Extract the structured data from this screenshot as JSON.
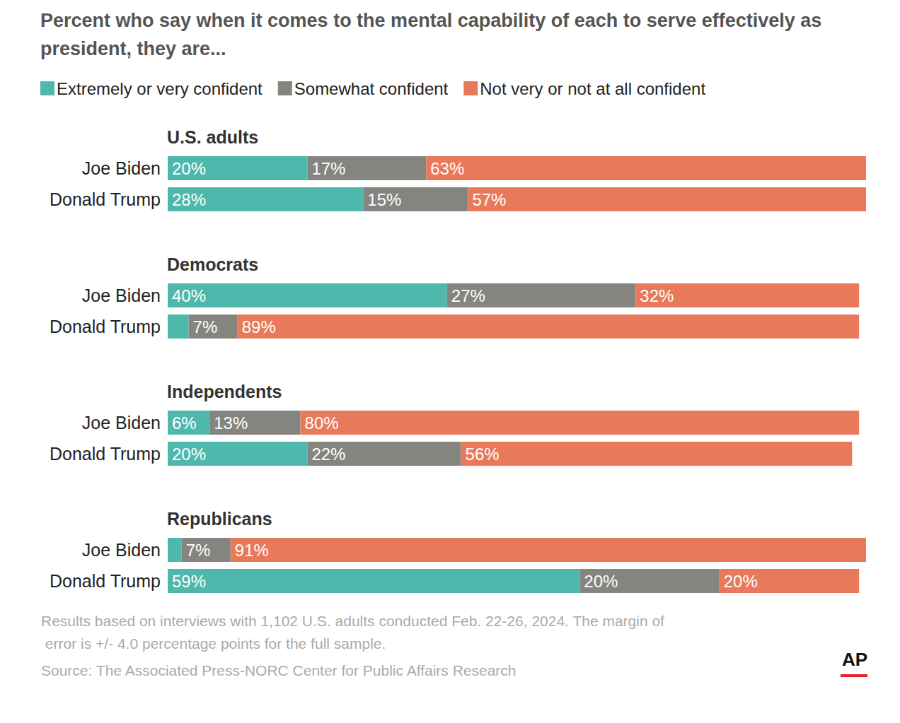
{
  "title": "Percent who say when it comes to the mental capability of each to serve effectively as president, they are...",
  "note": "Results based on interviews with 1,102 U.S. adults conducted Feb. 22-26, 2024. The margin of error is +/- 4.0 percentage points for the full sample.",
  "source": "Source: The Associated Press-NORC Center for Public Affairs Research",
  "logo": "AP",
  "chart_data": [
    {
      "type": "bar",
      "title": "U.S. adults",
      "orientation": "horizontal",
      "stacked": true,
      "data_labels": true,
      "tick_labels": "y",
      "grid": false,
      "legend": "top-left",
      "xlim": [
        0,
        100
      ],
      "categories": [
        "Joe Biden",
        "Donald Trump"
      ],
      "series": [
        {
          "name": "Extremely or very confident",
          "color": "#4fb8ad",
          "values": [
            20,
            28
          ],
          "value_labels": [
            "20%",
            "28%"
          ]
        },
        {
          "name": "Somewhat confident",
          "color": "#85857f",
          "values": [
            17,
            15
          ],
          "value_labels": [
            "17%",
            "15%"
          ]
        },
        {
          "name": "Not very or not at all confident",
          "color": "#e8795a",
          "values": [
            63,
            57
          ],
          "value_labels": [
            "63%",
            "57%"
          ]
        }
      ]
    },
    {
      "type": "bar",
      "title": "Democrats",
      "orientation": "horizontal",
      "stacked": true,
      "data_labels": true,
      "tick_labels": "y",
      "grid": false,
      "legend": "top-left",
      "xlim": [
        0,
        100
      ],
      "categories": [
        "Joe Biden",
        "Donald Trump"
      ],
      "series": [
        {
          "name": "Extremely or very confident",
          "color": "#4fb8ad",
          "values": [
            40,
            3
          ],
          "value_labels": [
            "40%",
            null
          ]
        },
        {
          "name": "Somewhat confident",
          "color": "#85857f",
          "values": [
            27,
            7
          ],
          "value_labels": [
            "27%",
            "7%"
          ]
        },
        {
          "name": "Not very or not at all confident",
          "color": "#e8795a",
          "values": [
            32,
            89
          ],
          "value_labels": [
            "32%",
            "89%"
          ]
        }
      ]
    },
    {
      "type": "bar",
      "title": "Independents",
      "orientation": "horizontal",
      "stacked": true,
      "data_labels": true,
      "tick_labels": "y",
      "grid": false,
      "legend": "top-left",
      "xlim": [
        0,
        100
      ],
      "categories": [
        "Joe Biden",
        "Donald Trump"
      ],
      "series": [
        {
          "name": "Extremely or very confident",
          "color": "#4fb8ad",
          "values": [
            6,
            20
          ],
          "value_labels": [
            "6%",
            "20%"
          ]
        },
        {
          "name": "Somewhat confident",
          "color": "#85857f",
          "values": [
            13,
            22
          ],
          "value_labels": [
            "13%",
            "22%"
          ]
        },
        {
          "name": "Not very or not at all confident",
          "color": "#e8795a",
          "values": [
            80,
            56
          ],
          "value_labels": [
            "80%",
            "56%"
          ]
        }
      ]
    },
    {
      "type": "bar",
      "title": "Republicans",
      "orientation": "horizontal",
      "stacked": true,
      "data_labels": true,
      "tick_labels": "y",
      "grid": false,
      "legend": "top-left",
      "xlim": [
        0,
        100
      ],
      "categories": [
        "Joe Biden",
        "Donald Trump"
      ],
      "series": [
        {
          "name": "Extremely or very confident",
          "color": "#4fb8ad",
          "values": [
            2,
            59
          ],
          "value_labels": [
            null,
            "59%"
          ]
        },
        {
          "name": "Somewhat confident",
          "color": "#85857f",
          "values": [
            7,
            20
          ],
          "value_labels": [
            "7%",
            "20%"
          ]
        },
        {
          "name": "Not very or not at all confident",
          "color": "#e8795a",
          "values": [
            91,
            20
          ],
          "value_labels": [
            "91%",
            "20%"
          ]
        }
      ]
    }
  ]
}
